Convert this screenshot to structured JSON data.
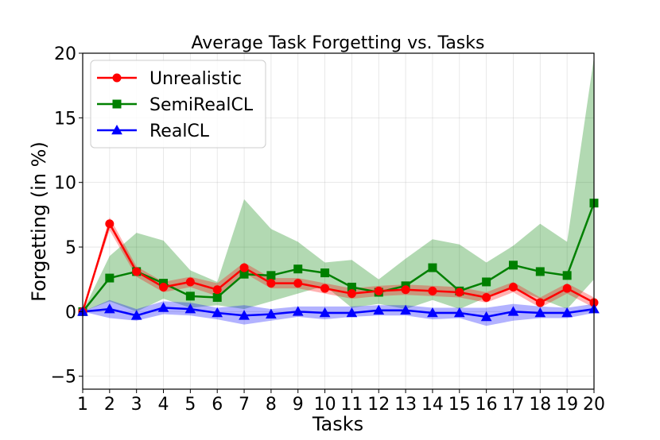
{
  "chart_data": {
    "type": "line",
    "title": "Average Task Forgetting vs. Tasks",
    "xlabel": "Tasks",
    "ylabel": "Forgetting (in %)",
    "xlim": [
      1,
      20
    ],
    "ylim": [
      -6,
      20
    ],
    "x_ticks": [
      1,
      2,
      3,
      4,
      5,
      6,
      7,
      8,
      9,
      10,
      11,
      12,
      13,
      14,
      15,
      16,
      17,
      18,
      19,
      20
    ],
    "y_ticks": [
      -5,
      0,
      5,
      10,
      15,
      20
    ],
    "grid": true,
    "legend_position": "top-left",
    "x": [
      1,
      2,
      3,
      4,
      5,
      6,
      7,
      8,
      9,
      10,
      11,
      12,
      13,
      14,
      15,
      16,
      17,
      18,
      19,
      20
    ],
    "series": [
      {
        "name": "Unrealistic",
        "color": "#ff0000",
        "marker": "circle",
        "values": [
          0,
          6.8,
          3.1,
          1.9,
          2.3,
          1.7,
          3.4,
          2.2,
          2.2,
          1.8,
          1.4,
          1.6,
          1.7,
          1.6,
          1.5,
          1.1,
          1.9,
          0.7,
          1.8,
          0.7
        ],
        "lower": [
          0,
          6.3,
          2.7,
          1.5,
          1.9,
          1.2,
          3.0,
          1.8,
          1.8,
          1.4,
          1.0,
          1.2,
          1.3,
          1.2,
          1.1,
          0.7,
          1.5,
          0.3,
          1.4,
          0.3
        ],
        "upper": [
          0,
          7.3,
          3.5,
          2.3,
          2.7,
          2.2,
          3.8,
          2.6,
          2.6,
          2.2,
          1.8,
          2.0,
          2.1,
          2.0,
          1.9,
          1.5,
          2.3,
          1.1,
          2.2,
          1.1
        ]
      },
      {
        "name": "SemiRealCL",
        "color": "#008000",
        "marker": "square",
        "values": [
          0,
          2.6,
          3.1,
          2.2,
          1.2,
          1.1,
          2.9,
          2.8,
          3.3,
          3.0,
          1.9,
          1.5,
          2.0,
          3.4,
          1.6,
          2.3,
          3.6,
          3.1,
          2.8,
          8.4
        ],
        "lower": [
          0,
          0.8,
          0.0,
          1.0,
          0.3,
          0.5,
          0.2,
          0.8,
          1.4,
          2.0,
          0.3,
          0.6,
          0.2,
          0.9,
          0.2,
          1.1,
          1.8,
          1.0,
          0.2,
          2.5
        ],
        "upper": [
          0,
          4.3,
          6.1,
          5.5,
          3.2,
          2.3,
          8.7,
          6.4,
          5.4,
          3.8,
          4.0,
          2.5,
          4.1,
          5.6,
          5.2,
          3.8,
          5.1,
          6.8,
          5.4,
          19.7
        ]
      },
      {
        "name": "RealCL",
        "color": "#0000ff",
        "marker": "triangle",
        "values": [
          0,
          0.2,
          -0.3,
          0.3,
          0.2,
          -0.1,
          -0.3,
          -0.2,
          0.0,
          -0.1,
          -0.1,
          0.1,
          0.1,
          -0.1,
          -0.1,
          -0.4,
          0.0,
          -0.1,
          -0.1,
          0.2
        ],
        "lower": [
          0,
          -0.5,
          -0.7,
          -0.2,
          -0.3,
          -0.6,
          -1.0,
          -0.7,
          -0.4,
          -0.6,
          -0.4,
          -0.3,
          -0.3,
          -0.6,
          -0.5,
          -1.1,
          -0.7,
          -0.5,
          -0.5,
          -0.1
        ],
        "upper": [
          0,
          0.9,
          0.2,
          0.8,
          0.7,
          0.3,
          0.5,
          0.2,
          0.4,
          0.4,
          0.4,
          0.5,
          0.5,
          0.3,
          0.3,
          0.3,
          0.6,
          0.4,
          0.3,
          0.6
        ]
      }
    ]
  }
}
